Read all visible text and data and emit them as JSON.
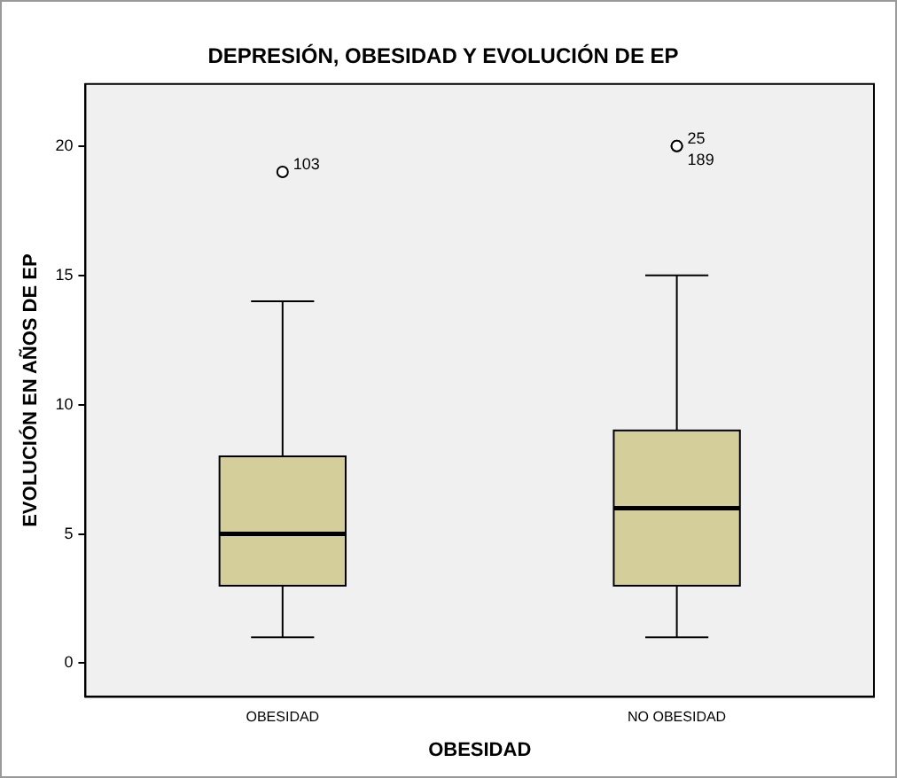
{
  "chart_data": {
    "type": "box",
    "title": "DEPRESIÓN, OBESIDAD Y EVOLUCIÓN DE EP",
    "xlabel": "OBESIDAD",
    "ylabel": "EVOLUCIÓN EN AÑOS DE EP",
    "categories": [
      "OBESIDAD",
      "NO OBESIDAD"
    ],
    "color": "#d4cf9a",
    "boxes": [
      {
        "low": 1,
        "q1": 3,
        "median": 5,
        "q3": 8,
        "high": 14,
        "outliers": [
          19
        ]
      },
      {
        "low": 1,
        "q1": 3,
        "median": 6,
        "q3": 9,
        "high": 15,
        "outliers": [
          20,
          20
        ]
      }
    ],
    "ylim": [
      -1.3,
      22.4
    ],
    "yticks": [
      0,
      5,
      10,
      15,
      20
    ],
    "grid": false,
    "annotations": [
      "103",
      "25",
      "189"
    ]
  }
}
